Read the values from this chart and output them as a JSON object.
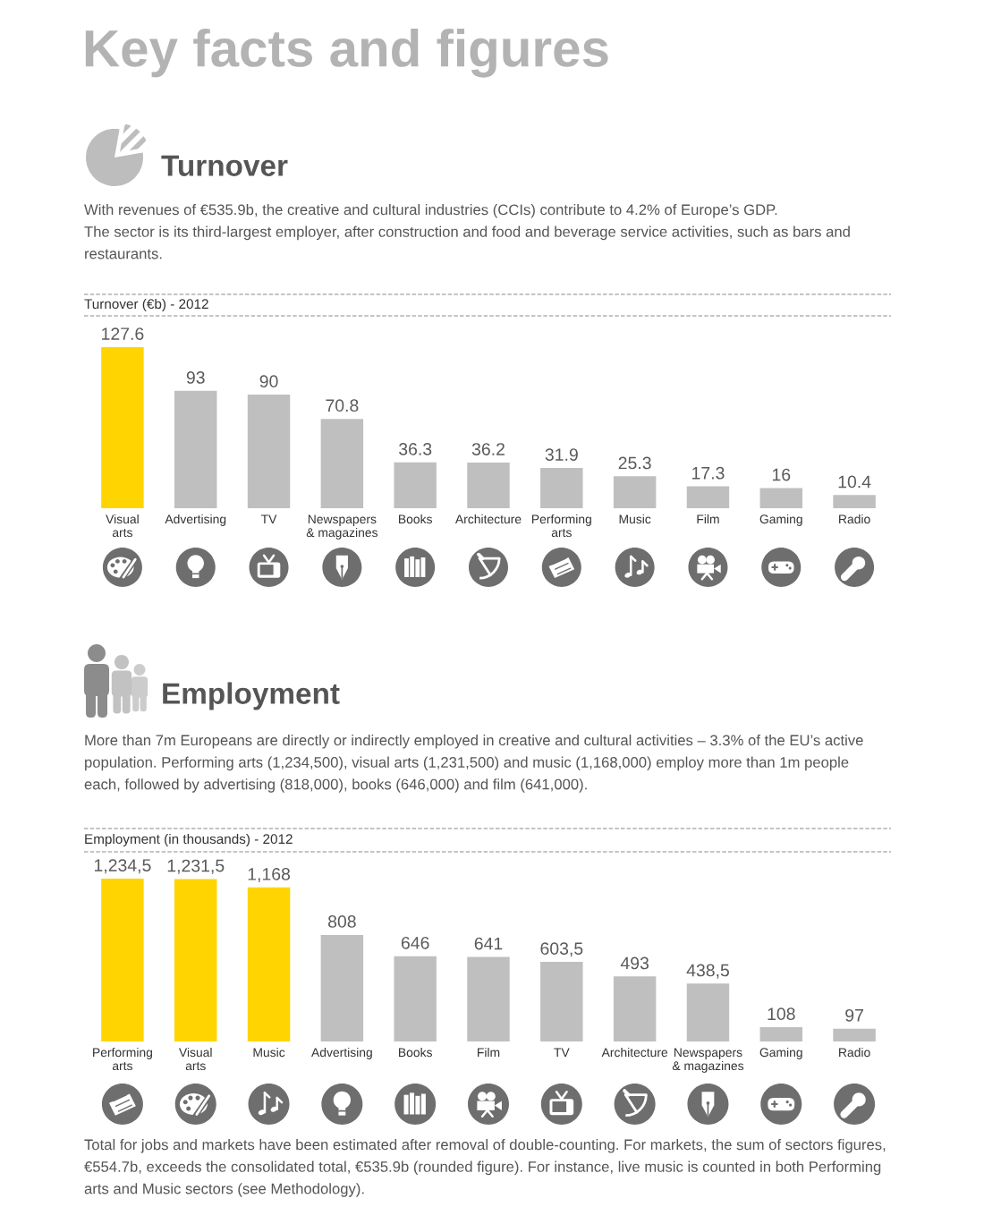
{
  "chart_data": [
    {
      "type": "bar",
      "title": "Turnover (€b) - 2012",
      "annotations": [
        "Key facts and figures",
        "Turnover",
        "With revenues of €535.9b, the creative and cultural industries (CCIs) contribute to 4.2% of Europe’s GDP.\nThe sector is its third-largest employer, after construction and food and beverage service activities, such as bars and\nrestaurants."
      ],
      "categories": [
        "Visual\narts",
        "Advertising",
        "TV",
        "Newspapers\n& magazines",
        "Books",
        "Architecture",
        "Performing\narts",
        "Music",
        "Film",
        "Gaming",
        "Radio"
      ],
      "values": [
        127.6,
        93,
        90,
        70.8,
        36.3,
        36.2,
        31.9,
        25.3,
        17.3,
        16,
        10.4
      ],
      "colors": [
        "#ffd400",
        "#bfbfbf",
        "#bfbfbf",
        "#bfbfbf",
        "#bfbfbf",
        "#bfbfbf",
        "#bfbfbf",
        "#bfbfbf",
        "#bfbfbf",
        "#bfbfbf",
        "#bfbfbf"
      ],
      "data_labels": true
    },
    {
      "type": "bar",
      "title": "Employment (in thousands) - 2012",
      "annotations": [
        "Employment",
        "More than 7m Europeans are directly or indirectly employed in creative and cultural activities – 3.3% of the EU’s active\npopulation. Performing arts (1,234,500), visual arts (1,231,500) and music (1,168,000) employ more than 1m people\neach, followed by advertising (818,000), books (646,000) and film (641,000).",
        "Total for jobs and markets have been estimated after removal of double-counting. For markets, the sum of sectors figures,\n€554.7b, exceeds the consolidated total, €535.9b (rounded figure). For instance, live music is counted in both Performing\narts and Music sectors (see Methodology)."
      ],
      "categories": [
        "Performing\narts",
        "Visual\narts",
        "Music",
        "Advertising",
        "Books",
        "Film",
        "TV",
        "Architecture",
        "Newspapers\n& magazines",
        "Gaming",
        "Radio"
      ],
      "values": [
        1234.5,
        1231.5,
        1168,
        808,
        646,
        641,
        603.5,
        493,
        438.5,
        108,
        97
      ],
      "value_labels": [
        "1,234,5",
        "1,231,5",
        "1,168",
        "808",
        "646",
        "641",
        "603,5",
        "493",
        "438,5",
        "108",
        "97"
      ],
      "colors": [
        "#ffd400",
        "#ffd400",
        "#ffd400",
        "#bfbfbf",
        "#bfbfbf",
        "#bfbfbf",
        "#bfbfbf",
        "#bfbfbf",
        "#bfbfbf",
        "#bfbfbf",
        "#bfbfbf"
      ]
    }
  ]
}
